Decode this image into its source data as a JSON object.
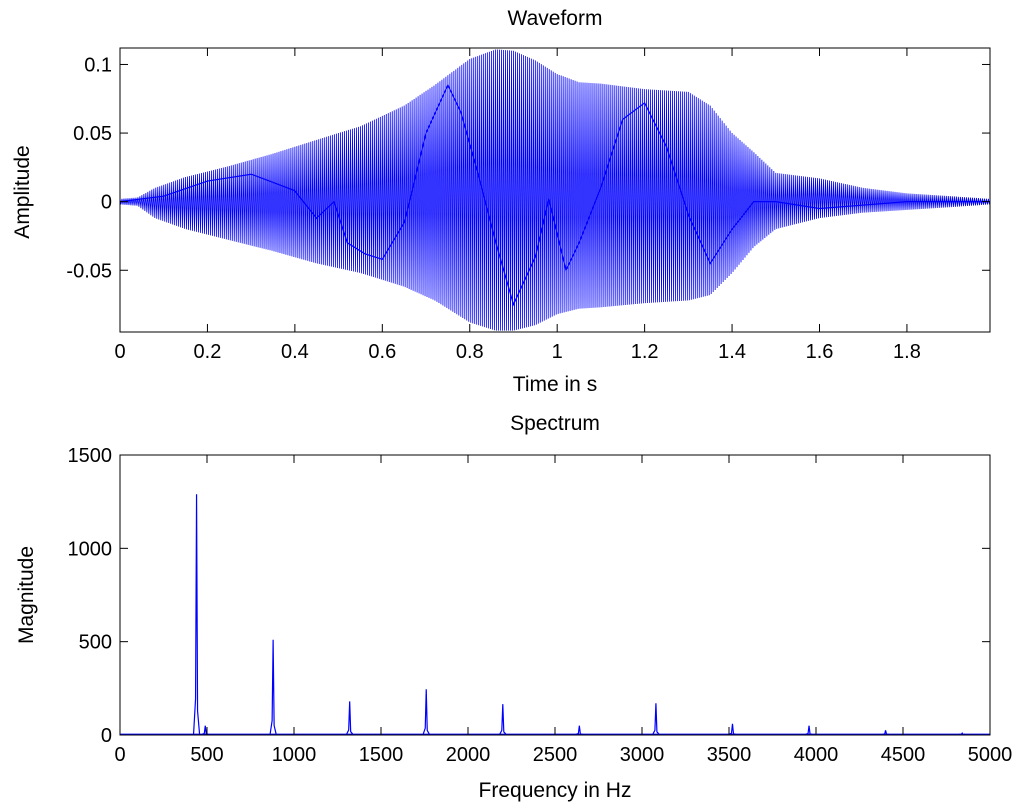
{
  "colors": {
    "line": "#0000ff",
    "axes": "#000000",
    "background": "#ffffff"
  },
  "chart_data": [
    {
      "type": "line",
      "title": "Waveform",
      "xlabel": "Time in s",
      "ylabel": "Amplitude",
      "xlim": [
        0,
        1.99
      ],
      "ylim": [
        -0.095,
        0.112
      ],
      "xticks": [
        0,
        0.2,
        0.4,
        0.6,
        0.8,
        1,
        1.2,
        1.4,
        1.6,
        1.8
      ],
      "xtick_labels": [
        "0",
        "0.2",
        "0.4",
        "0.6",
        "0.8",
        "1",
        "1.2",
        "1.4",
        "1.6",
        "1.8"
      ],
      "yticks": [
        -0.05,
        0,
        0.05,
        0.1
      ],
      "ytick_labels": [
        "-0.05",
        "0",
        "0.05",
        "0.1"
      ],
      "grid": false,
      "series": [
        {
          "color": "#0000ff",
          "envelope": {
            "t": [
              0,
              0.04,
              0.08,
              0.15,
              0.25,
              0.35,
              0.45,
              0.55,
              0.65,
              0.72,
              0.8,
              0.86,
              0.9,
              0.95,
              1.0,
              1.05,
              1.1,
              1.2,
              1.3,
              1.35,
              1.4,
              1.45,
              1.5,
              1.55,
              1.6,
              1.7,
              1.8,
              1.9,
              1.99
            ],
            "upper": [
              0.002,
              0.003,
              0.01,
              0.018,
              0.026,
              0.035,
              0.045,
              0.055,
              0.07,
              0.085,
              0.104,
              0.111,
              0.11,
              0.103,
              0.093,
              0.087,
              0.086,
              0.082,
              0.08,
              0.07,
              0.05,
              0.036,
              0.021,
              0.019,
              0.017,
              0.01,
              0.006,
              0.004,
              0.002
            ],
            "lower": [
              -0.002,
              -0.003,
              -0.012,
              -0.02,
              -0.028,
              -0.036,
              -0.045,
              -0.052,
              -0.062,
              -0.072,
              -0.088,
              -0.094,
              -0.094,
              -0.09,
              -0.082,
              -0.078,
              -0.077,
              -0.074,
              -0.072,
              -0.068,
              -0.052,
              -0.033,
              -0.02,
              -0.016,
              -0.012,
              -0.008,
              -0.006,
              -0.004,
              -0.002
            ]
          },
          "baseline_trace": {
            "t": [
              0,
              0.1,
              0.2,
              0.3,
              0.4,
              0.45,
              0.49,
              0.52,
              0.56,
              0.6,
              0.65,
              0.7,
              0.75,
              0.78,
              0.82,
              0.86,
              0.9,
              0.95,
              0.98,
              1.02,
              1.05,
              1.1,
              1.15,
              1.2,
              1.25,
              1.3,
              1.35,
              1.4,
              1.45,
              1.5,
              1.6,
              1.8,
              1.99
            ],
            "y": [
              0,
              0.004,
              0.015,
              0.02,
              0.008,
              -0.012,
              0.0,
              -0.03,
              -0.038,
              -0.042,
              -0.015,
              0.05,
              0.085,
              0.065,
              0.02,
              -0.03,
              -0.075,
              -0.04,
              0.002,
              -0.05,
              -0.03,
              0.01,
              0.06,
              0.072,
              0.04,
              -0.01,
              -0.045,
              -0.02,
              0.0,
              0.0,
              -0.005,
              0.0,
              0.0
            ]
          },
          "oscillation_hz": 220
        }
      ]
    },
    {
      "type": "line",
      "title": "Spectrum",
      "xlabel": "Frequency in Hz",
      "ylabel": "Magnitude",
      "xlim": [
        0,
        5000
      ],
      "ylim": [
        0,
        1500
      ],
      "xticks": [
        0,
        500,
        1000,
        1500,
        2000,
        2500,
        3000,
        3500,
        4000,
        4500,
        5000
      ],
      "xtick_labels": [
        "0",
        "500",
        "1000",
        "1500",
        "2000",
        "2500",
        "3000",
        "3500",
        "4000",
        "4500",
        "5000"
      ],
      "yticks": [
        0,
        500,
        1000,
        1500
      ],
      "ytick_labels": [
        "0",
        "500",
        "1000",
        "1500"
      ],
      "grid": false,
      "series": [
        {
          "color": "#0000ff",
          "peaks": [
            {
              "x": 440,
              "y": 1290
            },
            {
              "x": 490,
              "y": 50
            },
            {
              "x": 880,
              "y": 510
            },
            {
              "x": 1320,
              "y": 180
            },
            {
              "x": 1760,
              "y": 245
            },
            {
              "x": 2200,
              "y": 165
            },
            {
              "x": 2640,
              "y": 50
            },
            {
              "x": 3080,
              "y": 170
            },
            {
              "x": 3520,
              "y": 60
            },
            {
              "x": 3960,
              "y": 50
            },
            {
              "x": 4400,
              "y": 25
            },
            {
              "x": 4840,
              "y": 10
            }
          ],
          "noise_floor": 5
        }
      ]
    }
  ]
}
